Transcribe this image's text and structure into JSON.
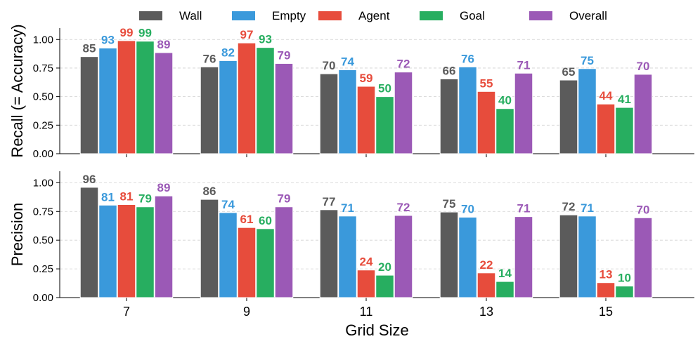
{
  "chart_data": {
    "type": "bar",
    "categories": [
      "7",
      "9",
      "11",
      "13",
      "15"
    ],
    "xlabel": "Grid Size",
    "series": [
      {
        "name": "Wall",
        "color": "#5b5b5b"
      },
      {
        "name": "Empty",
        "color": "#3a99db"
      },
      {
        "name": "Agent",
        "color": "#e74c3c"
      },
      {
        "name": "Goal",
        "color": "#27ae60"
      },
      {
        "name": "Overall",
        "color": "#9b59b6"
      }
    ],
    "panels": [
      {
        "ylabel": "Recall (= Accuracy)",
        "ylim": [
          0,
          1.1
        ],
        "yticks": [
          "0.00",
          "0.25",
          "0.50",
          "0.75",
          "1.00"
        ],
        "values": [
          [
            0.85,
            0.925,
            0.99,
            0.985,
            0.885
          ],
          [
            0.76,
            0.815,
            0.97,
            0.93,
            0.79
          ],
          [
            0.7,
            0.735,
            0.59,
            0.5,
            0.715
          ],
          [
            0.655,
            0.76,
            0.545,
            0.395,
            0.705
          ],
          [
            0.645,
            0.745,
            0.435,
            0.405,
            0.695
          ]
        ],
        "labels": [
          [
            "85",
            "93",
            "99",
            "99",
            "89"
          ],
          [
            "76",
            "82",
            "97",
            "93",
            "79"
          ],
          [
            "70",
            "74",
            "59",
            "50",
            "72"
          ],
          [
            "66",
            "76",
            "55",
            "40",
            "71"
          ],
          [
            "65",
            "75",
            "44",
            "41",
            "70"
          ]
        ]
      },
      {
        "ylabel": "Precision",
        "ylim": [
          0,
          1.1
        ],
        "yticks": [
          "0.00",
          "0.25",
          "0.50",
          "0.75",
          "1.00"
        ],
        "values": [
          [
            0.96,
            0.805,
            0.81,
            0.79,
            0.885
          ],
          [
            0.855,
            0.74,
            0.61,
            0.6,
            0.79
          ],
          [
            0.765,
            0.71,
            0.24,
            0.195,
            0.715
          ],
          [
            0.745,
            0.7,
            0.215,
            0.14,
            0.705
          ],
          [
            0.72,
            0.71,
            0.13,
            0.1,
            0.695
          ]
        ],
        "labels": [
          [
            "96",
            "81",
            "81",
            "79",
            "89"
          ],
          [
            "86",
            "74",
            "61",
            "60",
            "79"
          ],
          [
            "77",
            "71",
            "24",
            "20",
            "72"
          ],
          [
            "75",
            "70",
            "22",
            "14",
            "71"
          ],
          [
            "72",
            "71",
            "13",
            "10",
            "70"
          ]
        ]
      }
    ]
  }
}
